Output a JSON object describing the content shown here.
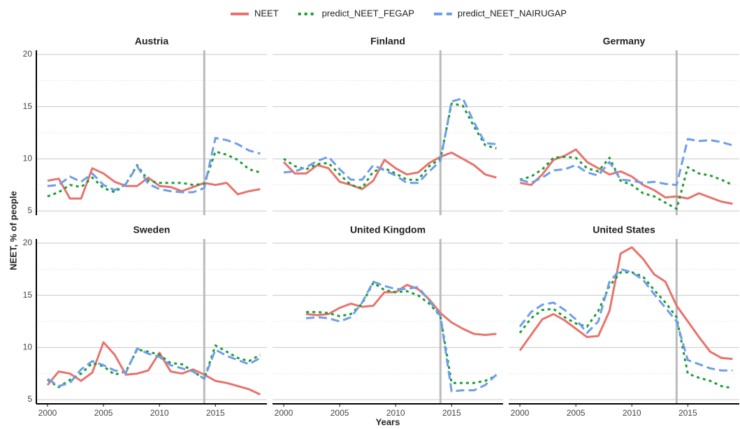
{
  "chart_data": [
    {
      "type": "line",
      "title": "Austria",
      "x_label": "Years",
      "y_label": "NEET, % of people",
      "x": [
        2000,
        2001,
        2002,
        2003,
        2004,
        2005,
        2006,
        2007,
        2008,
        2009,
        2010,
        2011,
        2012,
        2013,
        2014,
        2015,
        2016,
        2017,
        2018,
        2019
      ],
      "series": [
        {
          "name": "NEET",
          "color": "#e8736c",
          "style": "solid",
          "values": [
            7.9,
            8.1,
            6.2,
            6.2,
            9.1,
            8.6,
            7.8,
            7.4,
            7.4,
            8.2,
            7.4,
            7.3,
            6.9,
            7.3,
            7.7,
            7.5,
            7.7,
            6.6,
            6.9,
            7.1
          ]
        },
        {
          "name": "predict_NEET_FEGAP",
          "color": "#1a9e35",
          "style": "dotted",
          "values": [
            6.4,
            6.8,
            7.5,
            7.3,
            8.2,
            7.2,
            6.8,
            7.6,
            9.4,
            7.9,
            7.7,
            7.7,
            7.7,
            7.5,
            7.6,
            10.7,
            10.4,
            9.9,
            9.0,
            8.7
          ]
        },
        {
          "name": "predict_NEET_NAIRUGAP",
          "color": "#6d9eeb",
          "style": "dashed",
          "values": [
            7.4,
            7.5,
            8.3,
            7.8,
            8.6,
            7.5,
            7.0,
            7.6,
            9.3,
            7.6,
            7.1,
            6.9,
            6.8,
            6.8,
            7.2,
            12.0,
            11.8,
            11.4,
            10.8,
            10.5
          ]
        }
      ],
      "xlim": [
        1999,
        2019.6
      ],
      "ylim": [
        4.6,
        20.4
      ],
      "xticks": [
        2000,
        2005,
        2010,
        2015
      ],
      "yticks": [
        5,
        10,
        15,
        20
      ],
      "vline": 2014,
      "grid": true
    },
    {
      "type": "line",
      "title": "Finland",
      "x": [
        2000,
        2001,
        2002,
        2003,
        2004,
        2005,
        2006,
        2007,
        2008,
        2009,
        2010,
        2011,
        2012,
        2013,
        2014,
        2015,
        2016,
        2017,
        2018,
        2019
      ],
      "series": [
        {
          "name": "NEET",
          "color": "#e8736c",
          "style": "solid",
          "values": [
            9.7,
            8.6,
            8.6,
            9.4,
            9.1,
            7.8,
            7.5,
            7.1,
            7.9,
            9.9,
            9.1,
            8.5,
            8.7,
            9.6,
            10.2,
            10.6,
            10.0,
            9.4,
            8.5,
            8.2
          ]
        },
        {
          "name": "predict_NEET_FEGAP",
          "color": "#1a9e35",
          "style": "dotted",
          "values": [
            10.0,
            9.3,
            9.0,
            9.5,
            9.6,
            8.5,
            7.5,
            7.2,
            8.8,
            9.1,
            8.6,
            8.0,
            8.0,
            9.3,
            10.0,
            15.3,
            15.1,
            13.1,
            11.3,
            11.0
          ]
        },
        {
          "name": "predict_NEET_NAIRUGAP",
          "color": "#6d9eeb",
          "style": "dashed",
          "values": [
            8.7,
            8.8,
            9.2,
            9.8,
            10.2,
            9.0,
            8.0,
            8.0,
            9.4,
            8.9,
            8.4,
            7.7,
            7.7,
            8.8,
            9.8,
            15.5,
            15.8,
            13.5,
            11.5,
            11.4
          ]
        }
      ],
      "xlim": [
        1999,
        2019.6
      ],
      "ylim": [
        4.6,
        20.4
      ],
      "xticks": [
        2000,
        2005,
        2010,
        2015
      ],
      "yticks": [
        5,
        10,
        15,
        20
      ],
      "vline": 2014,
      "grid": true
    },
    {
      "type": "line",
      "title": "Germany",
      "x": [
        2000,
        2001,
        2002,
        2003,
        2004,
        2005,
        2006,
        2007,
        2008,
        2009,
        2010,
        2011,
        2012,
        2013,
        2014,
        2015,
        2016,
        2017,
        2018,
        2019
      ],
      "series": [
        {
          "name": "NEET",
          "color": "#e8736c",
          "style": "solid",
          "values": [
            7.7,
            7.5,
            8.5,
            9.9,
            10.3,
            10.9,
            9.7,
            9.1,
            8.5,
            8.8,
            8.3,
            7.5,
            7.0,
            6.3,
            6.4,
            6.2,
            6.7,
            6.3,
            5.9,
            5.7
          ]
        },
        {
          "name": "predict_NEET_FEGAP",
          "color": "#1a9e35",
          "style": "dotted",
          "values": [
            8.0,
            8.3,
            9.0,
            10.1,
            10.2,
            10.1,
            9.1,
            8.8,
            10.1,
            7.9,
            7.5,
            6.7,
            6.4,
            5.8,
            5.2,
            9.2,
            8.6,
            8.4,
            8.0,
            7.5
          ]
        },
        {
          "name": "predict_NEET_NAIRUGAP",
          "color": "#6d9eeb",
          "style": "dashed",
          "values": [
            8.0,
            7.7,
            8.2,
            8.9,
            9.0,
            9.4,
            8.7,
            8.4,
            9.7,
            8.0,
            7.9,
            7.7,
            7.8,
            7.6,
            7.5,
            11.9,
            11.7,
            11.8,
            11.6,
            11.3
          ]
        }
      ],
      "xlim": [
        1999,
        2019.6
      ],
      "ylim": [
        4.6,
        20.4
      ],
      "xticks": [
        2000,
        2005,
        2010,
        2015
      ],
      "yticks": [
        5,
        10,
        15,
        20
      ],
      "vline": 2014,
      "grid": true
    },
    {
      "type": "line",
      "title": "Sweden",
      "x": [
        2000,
        2001,
        2002,
        2003,
        2004,
        2005,
        2006,
        2007,
        2008,
        2009,
        2010,
        2011,
        2012,
        2013,
        2014,
        2015,
        2016,
        2017,
        2018,
        2019
      ],
      "series": [
        {
          "name": "NEET",
          "color": "#e8736c",
          "style": "solid",
          "values": [
            6.4,
            7.7,
            7.5,
            6.8,
            7.6,
            10.5,
            9.3,
            7.4,
            7.5,
            7.8,
            9.5,
            7.7,
            7.5,
            7.9,
            7.4,
            6.8,
            6.6,
            6.3,
            6.0,
            5.5
          ]
        },
        {
          "name": "predict_NEET_FEGAP",
          "color": "#1a9e35",
          "style": "dotted",
          "values": [
            6.9,
            6.2,
            6.9,
            7.5,
            8.5,
            8.2,
            7.4,
            7.7,
            9.8,
            9.6,
            9.3,
            8.5,
            8.4,
            7.7,
            7.0,
            10.2,
            9.6,
            9.0,
            8.7,
            9.3
          ]
        },
        {
          "name": "predict_NEET_NAIRUGAP",
          "color": "#6d9eeb",
          "style": "dashed",
          "values": [
            7.0,
            6.3,
            6.6,
            7.9,
            8.7,
            8.3,
            7.8,
            7.6,
            9.9,
            9.4,
            9.1,
            8.3,
            8.0,
            7.7,
            7.0,
            9.8,
            9.2,
            8.8,
            8.4,
            9.0
          ]
        }
      ],
      "xlim": [
        1999,
        2019.6
      ],
      "ylim": [
        4.6,
        20.4
      ],
      "xticks": [
        2000,
        2005,
        2010,
        2015
      ],
      "yticks": [
        5,
        10,
        15,
        20
      ],
      "vline": 2014,
      "grid": true
    },
    {
      "type": "line",
      "title": "United Kingdom",
      "x": [
        2000,
        2001,
        2002,
        2003,
        2004,
        2005,
        2006,
        2007,
        2008,
        2009,
        2010,
        2011,
        2012,
        2013,
        2014,
        2015,
        2016,
        2017,
        2018,
        2019
      ],
      "series": [
        {
          "name": "NEET",
          "color": "#e8736c",
          "style": "solid",
          "values": [
            null,
            null,
            13.2,
            13.1,
            13.2,
            13.8,
            14.2,
            13.9,
            14.0,
            15.3,
            15.3,
            16.0,
            15.6,
            14.6,
            13.3,
            12.4,
            11.8,
            11.3,
            11.2,
            11.3
          ]
        },
        {
          "name": "predict_NEET_FEGAP",
          "color": "#1a9e35",
          "style": "dotted",
          "values": [
            null,
            null,
            13.4,
            13.4,
            13.3,
            13.0,
            13.2,
            14.2,
            16.2,
            15.5,
            15.3,
            15.4,
            15.0,
            14.2,
            13.0,
            6.6,
            6.6,
            6.6,
            6.8,
            7.3
          ]
        },
        {
          "name": "predict_NEET_NAIRUGAP",
          "color": "#6d9eeb",
          "style": "dashed",
          "values": [
            null,
            null,
            12.8,
            12.9,
            12.8,
            12.5,
            12.9,
            14.3,
            16.3,
            15.9,
            15.6,
            15.6,
            15.8,
            14.5,
            13.0,
            5.8,
            5.9,
            5.9,
            6.4,
            7.4
          ]
        }
      ],
      "xlim": [
        1999,
        2019.6
      ],
      "ylim": [
        4.6,
        20.4
      ],
      "xticks": [
        2000,
        2005,
        2010,
        2015
      ],
      "yticks": [
        5,
        10,
        15,
        20
      ],
      "vline": 2014,
      "grid": true
    },
    {
      "type": "line",
      "title": "United States",
      "x": [
        2000,
        2001,
        2002,
        2003,
        2004,
        2005,
        2006,
        2007,
        2008,
        2009,
        2010,
        2011,
        2012,
        2013,
        2014,
        2015,
        2016,
        2017,
        2018,
        2019
      ],
      "series": [
        {
          "name": "NEET",
          "color": "#e8736c",
          "style": "solid",
          "values": [
            9.7,
            11.2,
            12.7,
            13.2,
            12.6,
            11.8,
            11.0,
            11.1,
            13.5,
            19.0,
            19.6,
            18.5,
            17.0,
            16.3,
            14.0,
            12.5,
            11.0,
            9.6,
            9.0,
            8.9
          ]
        },
        {
          "name": "predict_NEET_FEGAP",
          "color": "#1a9e35",
          "style": "dotted",
          "values": [
            11.4,
            12.8,
            13.6,
            13.7,
            12.9,
            12.3,
            12.0,
            13.5,
            15.9,
            17.2,
            17.2,
            16.8,
            15.5,
            14.3,
            12.9,
            7.5,
            7.1,
            6.8,
            6.3,
            6.1
          ]
        },
        {
          "name": "predict_NEET_NAIRUGAP",
          "color": "#6d9eeb",
          "style": "dashed",
          "values": [
            12.0,
            13.4,
            14.1,
            14.3,
            13.6,
            12.7,
            11.4,
            12.5,
            16.3,
            17.5,
            17.2,
            16.5,
            15.1,
            13.8,
            12.5,
            8.8,
            8.4,
            8.0,
            7.8,
            7.8
          ]
        }
      ],
      "xlim": [
        1999,
        2019.6
      ],
      "ylim": [
        4.6,
        20.4
      ],
      "xticks": [
        2000,
        2005,
        2010,
        2015
      ],
      "yticks": [
        5,
        10,
        15,
        20
      ],
      "vline": 2014,
      "grid": true
    }
  ]
}
